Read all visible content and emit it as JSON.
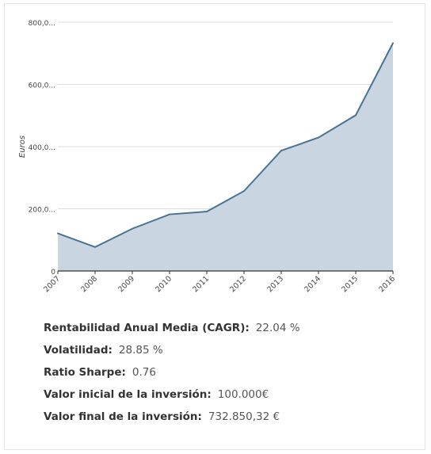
{
  "chart_data": {
    "type": "area",
    "ylabel": "Euros",
    "x": [
      "2007",
      "2008",
      "2009",
      "2010",
      "2011",
      "2012",
      "2013",
      "2014",
      "2015",
      "2016"
    ],
    "values": [
      121000,
      77000,
      136000,
      182000,
      191000,
      257000,
      387000,
      429000,
      501000,
      732850
    ],
    "ylim": [
      0,
      800000
    ],
    "yticks": [
      {
        "value": 0,
        "label": "0"
      },
      {
        "value": 200000,
        "label": "200,0..."
      },
      {
        "value": 400000,
        "label": "400,0..."
      },
      {
        "value": 600000,
        "label": "600,0..."
      },
      {
        "value": 800000,
        "label": "800,0..."
      }
    ],
    "grid": true,
    "colors": {
      "line": "#4a7391",
      "fill": "#c9d6e1",
      "grid": "#dddddd",
      "axis": "#333333"
    }
  },
  "stats": [
    {
      "label": "Rentabilidad Anual Media (CAGR):",
      "value": "22.04 %"
    },
    {
      "label": "Volatilidad:",
      "value": "28.85 %"
    },
    {
      "label": "Ratio Sharpe:",
      "value": "0.76"
    },
    {
      "label": "Valor inicial de la inversión:",
      "value": "100.000€"
    },
    {
      "label": "Valor final de la inversión:",
      "value": "732.850,32 €"
    }
  ]
}
